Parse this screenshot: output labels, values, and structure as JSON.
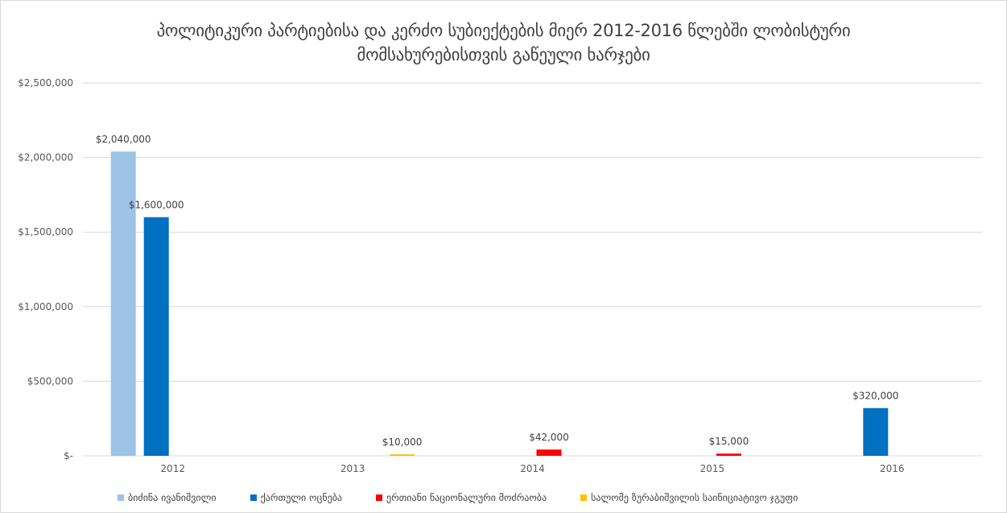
{
  "title": {
    "line1": "პოლიტიკური პარტიებისა და კერძო სუბიექტების მიერ 2012-2016 წლებში ლობისტური",
    "line2": "მომსახურებისთვის გაწეული ხარჯები"
  },
  "colors": {
    "series": [
      "#9dc3e6",
      "#0070c0",
      "#ff0000",
      "#ffc000"
    ],
    "gridline": "#d9d9d9",
    "axis_text": "#595959",
    "label_text": "#404040"
  },
  "chart_data": {
    "type": "bar",
    "categories": [
      "2012",
      "2013",
      "2014",
      "2015",
      "2016"
    ],
    "series": [
      {
        "name": "ბიძინა ივანიშვილი",
        "values": [
          2040000,
          0,
          0,
          0,
          0
        ]
      },
      {
        "name": "ქართული ოცნება",
        "values": [
          1600000,
          0,
          0,
          0,
          320000
        ]
      },
      {
        "name": "ერთიანი ნაციონალური მოძრაობა",
        "values": [
          0,
          0,
          42000,
          15000,
          0
        ]
      },
      {
        "name": "სალომე ზურაბიშვილის საინიციატივო ჯგუფი",
        "values": [
          0,
          10000,
          0,
          0,
          0
        ]
      }
    ],
    "data_labels": [
      {
        "category": "2012",
        "series": 0,
        "text": "$2,040,000"
      },
      {
        "category": "2012",
        "series": 1,
        "text": "$1,600,000"
      },
      {
        "category": "2013",
        "series": 3,
        "text": "$10,000"
      },
      {
        "category": "2014",
        "series": 2,
        "text": "$42,000"
      },
      {
        "category": "2015",
        "series": 2,
        "text": "$15,000"
      },
      {
        "category": "2016",
        "series": 1,
        "text": "$320,000"
      }
    ],
    "y_ticks": [
      0,
      500000,
      1000000,
      1500000,
      2000000,
      2500000
    ],
    "y_tick_labels": [
      "$-",
      "$500,000",
      "$1,000,000",
      "$1,500,000",
      "$2,000,000",
      "$2,500,000"
    ],
    "ylim": [
      0,
      2500000
    ],
    "grid": true,
    "legend_position": "bottom"
  }
}
